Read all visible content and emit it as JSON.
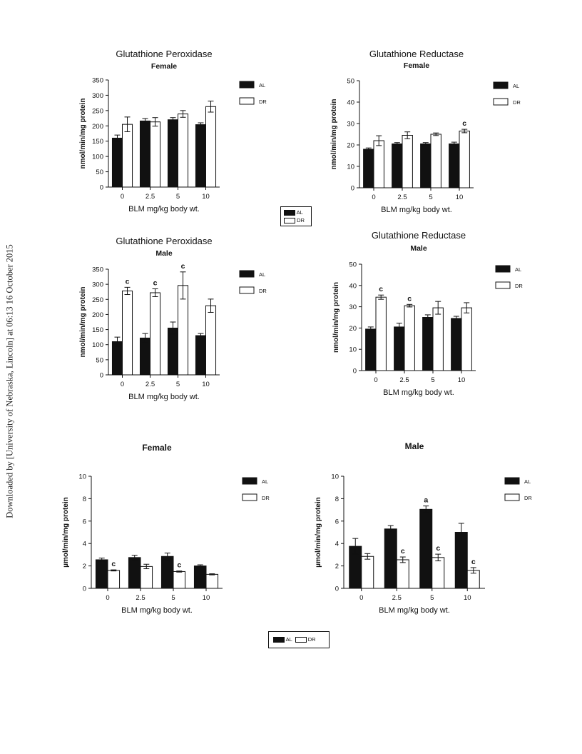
{
  "sidebar_text": "Downloaded by [University of Nebraska, Lincoln] at 06:13 16 October 2015",
  "shared_legend_1": {
    "al": "AL",
    "dr": "DR"
  },
  "shared_legend_2": {
    "al": "AL",
    "dr": "DR"
  },
  "chart_data": [
    {
      "type": "bar",
      "title": "Glutathione Peroxidase",
      "subtitle": "Female",
      "xlabel": "BLM mg/kg body wt.",
      "ylabel": "nmol/min/mg protein",
      "categories": [
        "0",
        "2.5",
        "5",
        "10"
      ],
      "ylim": [
        0,
        350
      ],
      "yticks": [
        0,
        50,
        100,
        150,
        200,
        250,
        300,
        350
      ],
      "legend": "top-right",
      "series": [
        {
          "name": "AL",
          "color": "#111111",
          "values": [
            160,
            216,
            220,
            204
          ],
          "errors": [
            10,
            8,
            7,
            6
          ],
          "annotations": [
            "",
            "",
            "",
            ""
          ]
        },
        {
          "name": "DR",
          "color": "#ffffff",
          "values": [
            205,
            213,
            239,
            263
          ],
          "errors": [
            24,
            14,
            11,
            18
          ],
          "annotations": [
            "",
            "",
            "",
            ""
          ]
        }
      ]
    },
    {
      "type": "bar",
      "title": "Glutathione Reductase",
      "subtitle": "Female",
      "xlabel": "BLM mg/kg body wt.",
      "ylabel": "nmol/min/mg protein",
      "categories": [
        "0",
        "2.5",
        "5",
        "10"
      ],
      "ylim": [
        0,
        50
      ],
      "yticks": [
        0,
        10,
        20,
        30,
        40,
        50
      ],
      "legend": "top-right",
      "series": [
        {
          "name": "AL",
          "color": "#111111",
          "values": [
            18,
            20.5,
            20.5,
            20.5
          ],
          "errors": [
            0.6,
            0.6,
            0.6,
            0.8
          ],
          "annotations": [
            "",
            "",
            "",
            ""
          ]
        },
        {
          "name": "DR",
          "color": "#ffffff",
          "values": [
            22,
            24.5,
            25,
            26.5
          ],
          "errors": [
            2.3,
            1.6,
            0.6,
            0.8
          ],
          "annotations": [
            "",
            "",
            "",
            "c"
          ]
        }
      ]
    },
    {
      "type": "bar",
      "title": "Glutathione Peroxidase",
      "subtitle": "Male",
      "xlabel": "BLM mg/kg body wt.",
      "ylabel": "nmol/min/mg protein",
      "categories": [
        "0",
        "2.5",
        "5",
        "10"
      ],
      "ylim": [
        0,
        350
      ],
      "yticks": [
        0,
        50,
        100,
        150,
        200,
        250,
        300,
        350
      ],
      "legend": "top-right",
      "series": [
        {
          "name": "AL",
          "color": "#111111",
          "values": [
            110,
            122,
            155,
            130
          ],
          "errors": [
            15,
            15,
            20,
            7
          ],
          "annotations": [
            "",
            "",
            "",
            ""
          ]
        },
        {
          "name": "DR",
          "color": "#ffffff",
          "values": [
            278,
            272,
            296,
            229
          ],
          "errors": [
            12,
            13,
            45,
            22
          ],
          "annotations": [
            "c",
            "c",
            "c",
            ""
          ]
        }
      ]
    },
    {
      "type": "bar",
      "title": "Glutathione Reductase",
      "subtitle": "Male",
      "xlabel": "BLM mg/kg body wt.",
      "ylabel": "nmol/min/mg protein",
      "categories": [
        "0",
        "2.5",
        "5",
        "10"
      ],
      "ylim": [
        0,
        50
      ],
      "yticks": [
        0,
        10,
        20,
        30,
        40,
        50
      ],
      "legend": "top-right",
      "series": [
        {
          "name": "AL",
          "color": "#111111",
          "values": [
            19.5,
            20.5,
            25,
            24.5
          ],
          "errors": [
            1,
            1.8,
            1.2,
            1
          ],
          "annotations": [
            "",
            "",
            "",
            ""
          ]
        },
        {
          "name": "DR",
          "color": "#ffffff",
          "values": [
            34.5,
            30.5,
            29.5,
            29.5
          ],
          "errors": [
            1,
            0.6,
            3,
            2.4
          ],
          "annotations": [
            "c",
            "c",
            "",
            ""
          ]
        }
      ]
    },
    {
      "type": "bar",
      "title": "",
      "subtitle": "Female",
      "xlabel": "BLM mg/kg body wt.",
      "ylabel": "µmol/min/mg protein",
      "categories": [
        "0",
        "2.5",
        "5",
        "10"
      ],
      "ylim": [
        0,
        10
      ],
      "yticks": [
        0,
        2,
        4,
        6,
        8,
        10
      ],
      "legend": "top-right",
      "series": [
        {
          "name": "AL",
          "color": "#111111",
          "values": [
            2.55,
            2.75,
            2.85,
            2.0
          ],
          "errors": [
            0.15,
            0.2,
            0.3,
            0.1
          ],
          "annotations": [
            "",
            "",
            "",
            ""
          ]
        },
        {
          "name": "DR",
          "color": "#ffffff",
          "values": [
            1.6,
            1.95,
            1.5,
            1.25
          ],
          "errors": [
            0.05,
            0.2,
            0.05,
            0.05
          ],
          "annotations": [
            "c",
            "",
            "c",
            ""
          ]
        }
      ]
    },
    {
      "type": "bar",
      "title": "",
      "subtitle": "Male",
      "xlabel": "BLM mg/kg body wt.",
      "ylabel": "µmol/min/mg protein",
      "categories": [
        "0",
        "2.5",
        "5",
        "10"
      ],
      "ylim": [
        0,
        10
      ],
      "yticks": [
        0,
        2,
        4,
        6,
        8,
        10
      ],
      "legend": "top-right",
      "series": [
        {
          "name": "AL",
          "color": "#111111",
          "values": [
            3.75,
            5.3,
            7.05,
            5.0
          ],
          "errors": [
            0.7,
            0.3,
            0.3,
            0.8
          ],
          "annotations": [
            "",
            "",
            "a",
            ""
          ]
        },
        {
          "name": "DR",
          "color": "#ffffff",
          "values": [
            2.85,
            2.55,
            2.75,
            1.6
          ],
          "errors": [
            0.25,
            0.25,
            0.3,
            0.25
          ],
          "annotations": [
            "",
            "c",
            "c",
            "c"
          ]
        }
      ]
    }
  ]
}
